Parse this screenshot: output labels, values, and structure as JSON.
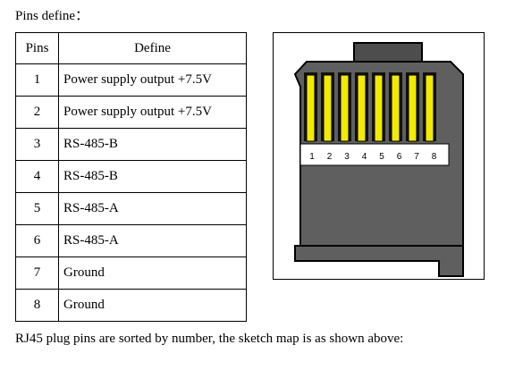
{
  "heading": "Pins define：",
  "table": {
    "headers": [
      "Pins",
      "Define"
    ],
    "rows": [
      {
        "pin": "1",
        "define": "Power supply output +7.5V"
      },
      {
        "pin": "2",
        "define": "Power supply output +7.5V"
      },
      {
        "pin": "3",
        "define": "RS-485-B"
      },
      {
        "pin": "4",
        "define": "RS-485-B"
      },
      {
        "pin": "5",
        "define": "RS-485-A"
      },
      {
        "pin": "6",
        "define": "RS-485-A"
      },
      {
        "pin": "7",
        "define": "Ground"
      },
      {
        "pin": "8",
        "define": "Ground"
      }
    ]
  },
  "figure": {
    "pin_numbers": [
      "1",
      "2",
      "3",
      "4",
      "5",
      "6",
      "7",
      "8"
    ],
    "colors": {
      "plug_body": "#5f5f5f",
      "plug_tab": "#4d4d4d",
      "contacts": "#f2ea00",
      "outline": "#000000"
    }
  },
  "caption": "RJ45 plug pins are sorted by number, the sketch map is as shown above:"
}
